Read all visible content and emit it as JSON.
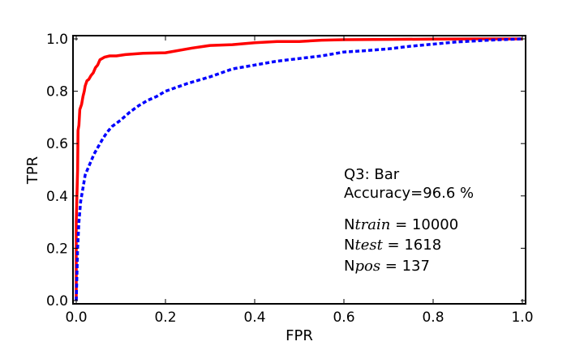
{
  "chart_data": {
    "type": "line",
    "title": "",
    "xlabel": "FPR",
    "ylabel": "TPR",
    "xlim": [
      0.0,
      1.0
    ],
    "ylim": [
      0.0,
      1.0
    ],
    "x_ticks": [
      "0.0",
      "0.2",
      "0.4",
      "0.6",
      "0.8",
      "1.0"
    ],
    "y_ticks": [
      "0.0",
      "0.2",
      "0.4",
      "0.6",
      "0.8",
      "1.0"
    ],
    "grid": false,
    "legend": "none",
    "annotations": {
      "title": "Q3: Bar",
      "accuracy": "Accuracy=96.6 %",
      "ntrain": {
        "prefix": "N",
        "sub": "train",
        "value": " = 10000"
      },
      "ntest": {
        "prefix": "N",
        "sub": "test",
        "value": " = 1618"
      },
      "npos": {
        "prefix": "N",
        "sub": "pos",
        "value": " = 137"
      }
    },
    "series": [
      {
        "color": "#ff0000",
        "style": "solid",
        "x": [
          0.0,
          0.0,
          0.003,
          0.004,
          0.006,
          0.008,
          0.01,
          0.012,
          0.015,
          0.018,
          0.02,
          0.024,
          0.028,
          0.033,
          0.038,
          0.043,
          0.048,
          0.053,
          0.058,
          0.063,
          0.075,
          0.09,
          0.11,
          0.15,
          0.2,
          0.26,
          0.3,
          0.35,
          0.4,
          0.45,
          0.5,
          0.55,
          0.6,
          0.7,
          0.8,
          0.9,
          1.0
        ],
        "y": [
          0.0,
          0.3,
          0.5,
          0.65,
          0.67,
          0.73,
          0.74,
          0.75,
          0.78,
          0.8,
          0.82,
          0.84,
          0.845,
          0.86,
          0.87,
          0.89,
          0.9,
          0.92,
          0.925,
          0.93,
          0.935,
          0.935,
          0.94,
          0.945,
          0.947,
          0.965,
          0.975,
          0.978,
          0.985,
          0.99,
          0.99,
          0.995,
          0.997,
          0.998,
          0.999,
          1.0,
          1.0
        ]
      },
      {
        "color": "#0000ff",
        "style": "dashed",
        "x": [
          0.0,
          0.003,
          0.006,
          0.01,
          0.015,
          0.02,
          0.03,
          0.04,
          0.05,
          0.06,
          0.07,
          0.08,
          0.1,
          0.12,
          0.14,
          0.16,
          0.18,
          0.2,
          0.25,
          0.3,
          0.35,
          0.4,
          0.45,
          0.5,
          0.55,
          0.6,
          0.65,
          0.7,
          0.75,
          0.8,
          0.85,
          0.9,
          0.95,
          1.0
        ],
        "y": [
          0.0,
          0.2,
          0.3,
          0.38,
          0.43,
          0.48,
          0.52,
          0.56,
          0.59,
          0.62,
          0.645,
          0.665,
          0.69,
          0.72,
          0.745,
          0.765,
          0.78,
          0.8,
          0.83,
          0.855,
          0.885,
          0.9,
          0.915,
          0.925,
          0.935,
          0.95,
          0.955,
          0.962,
          0.972,
          0.98,
          0.988,
          0.993,
          0.997,
          1.0
        ]
      }
    ]
  }
}
